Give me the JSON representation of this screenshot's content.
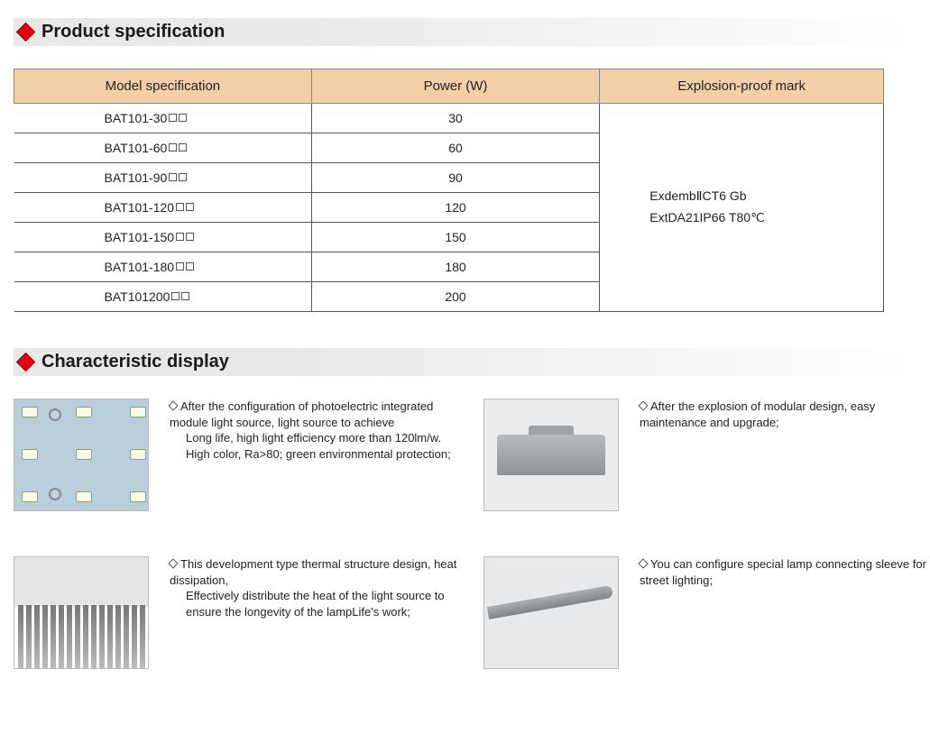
{
  "sections": {
    "spec_title": "Product specification",
    "char_title": "Characteristic display"
  },
  "spec_table": {
    "columns": [
      "Model specification",
      "Power (W)",
      "Explosion-proof mark"
    ],
    "rows": [
      {
        "model": "BAT101-30",
        "power": "30"
      },
      {
        "model": "BAT101-60",
        "power": "60"
      },
      {
        "model": "BAT101-90",
        "power": "90"
      },
      {
        "model": "BAT101-120",
        "power": "120"
      },
      {
        "model": "BAT101-150",
        "power": "150"
      },
      {
        "model": "BAT101-180",
        "power": "180"
      },
      {
        "model": "BAT101200",
        "power": "200"
      }
    ],
    "mark_line1": "ExdembⅡCT6 Gb",
    "mark_line2": "ExtDA21IP66 T80℃",
    "colors": {
      "header_bg": "#f2cfa7",
      "border": "#555555"
    }
  },
  "characteristics": [
    {
      "img_type": "led",
      "lead": "After the configuration of photoelectric integrated module light source, light source to achieve",
      "body": "Long life, high light efficiency more than 120lm/w. High color, Ra>80; green environmental protection;"
    },
    {
      "img_type": "lamp",
      "lead": "After the explosion of modular design, easy maintenance and upgrade;",
      "body": ""
    },
    {
      "img_type": "fins",
      "lead": "This development type thermal structure design, heat dissipation,",
      "body": "Effectively distribute the heat of the light source to ensure the longevity of the lampLife's work;"
    },
    {
      "img_type": "street",
      "lead": "You can configure special lamp connecting sleeve for street lighting;",
      "body": ""
    }
  ]
}
